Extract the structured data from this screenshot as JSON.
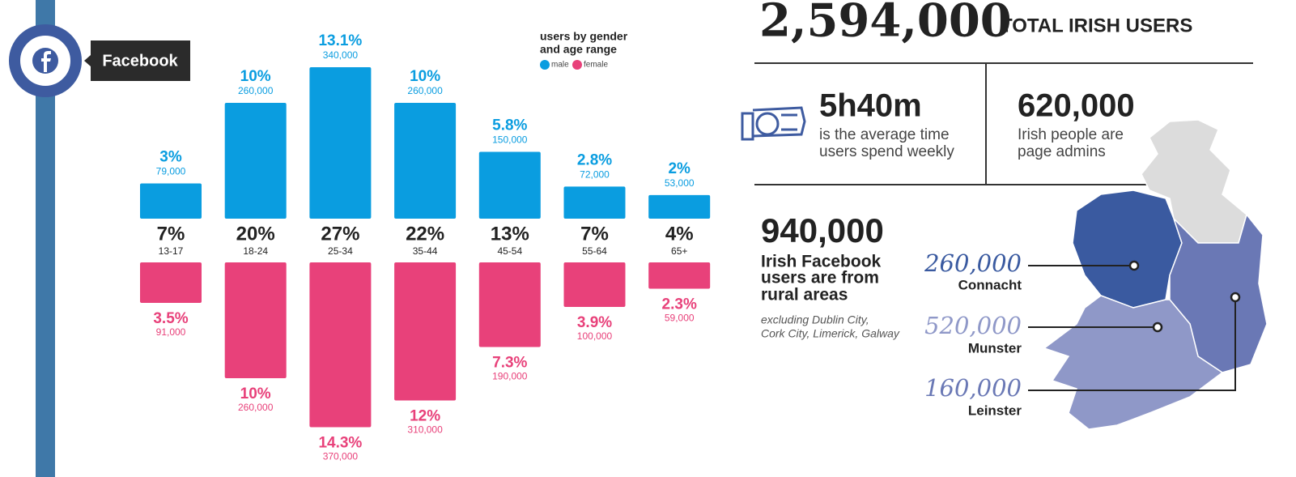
{
  "chart_data": {
    "type": "bar",
    "legend_title": [
      "users by gender",
      "and age range"
    ],
    "categories": [
      "13-17",
      "18-24",
      "25-34",
      "35-44",
      "45-54",
      "55-64",
      "65+"
    ],
    "category_shares": [
      "7%",
      "20%",
      "27%",
      "22%",
      "13%",
      "7%",
      "4%"
    ],
    "series": [
      {
        "name": "male",
        "color": "#0a9de0",
        "values": [
          79000,
          260000,
          340000,
          260000,
          150000,
          72000,
          53000
        ],
        "value_labels": [
          "79,000",
          "260,000",
          "340,000",
          "260,000",
          "150,000",
          "72,000",
          "53,000"
        ],
        "share_labels": [
          "3%",
          "10%",
          "13.1%",
          "10%",
          "5.8%",
          "2.8%",
          "2%"
        ]
      },
      {
        "name": "female",
        "color": "#e8417a",
        "values": [
          91000,
          260000,
          370000,
          310000,
          190000,
          100000,
          59000
        ],
        "value_labels": [
          "91,000",
          "260,000",
          "370,000",
          "310,000",
          "190,000",
          "100,000",
          "59,000"
        ],
        "share_labels": [
          "3.5%",
          "10%",
          "14.3%",
          "12%",
          "7.3%",
          "3.9%",
          "2.3%"
        ]
      }
    ]
  },
  "platform": "Facebook",
  "total": {
    "value": "2,594,000",
    "label": "TOTAL IRISH USERS"
  },
  "time": {
    "value": "5h40m",
    "lines": [
      "is the average time",
      "users spend weekly"
    ]
  },
  "admins": {
    "value": "620,000",
    "lines": [
      "Irish people are",
      "page admins"
    ]
  },
  "rural": {
    "value": "940,000",
    "lines": [
      "Irish Facebook",
      "users are from",
      "rural areas"
    ],
    "note": [
      "excluding Dublin City,",
      "Cork City, Limerick, Galway"
    ]
  },
  "regions": [
    {
      "value": "260,000",
      "name": "Connacht"
    },
    {
      "value": "520,000",
      "name": "Munster"
    },
    {
      "value": "160,000",
      "name": "Leinster"
    }
  ]
}
